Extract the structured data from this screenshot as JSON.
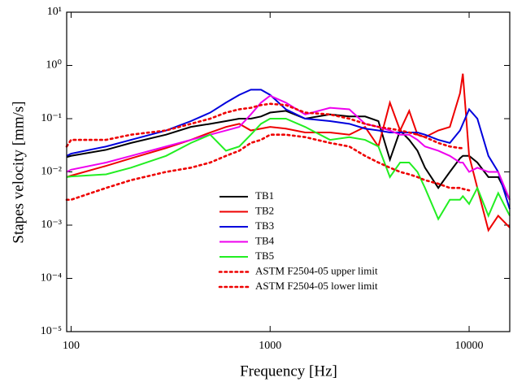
{
  "chart_data": {
    "type": "line",
    "xlabel": "Frequency [Hz]",
    "ylabel": "Stapes velocity [mm/s]",
    "xscale": "log",
    "yscale": "log",
    "xlim": [
      95,
      16000
    ],
    "ylim": [
      1e-05,
      10
    ],
    "xticks": [
      100,
      1000,
      10000
    ],
    "yticks": [
      {
        "value": 1e-05,
        "label": "10⁻⁵"
      },
      {
        "value": 0.0001,
        "label": "10⁻⁴"
      },
      {
        "value": 0.001,
        "label": "10⁻³"
      },
      {
        "value": 0.01,
        "label": "10⁻²"
      },
      {
        "value": 0.1,
        "label": "10⁻¹"
      },
      {
        "value": 1,
        "label": "10⁰"
      },
      {
        "value": 10,
        "label": "10¹"
      }
    ],
    "legend": "lower-center",
    "x": [
      95,
      100,
      150,
      200,
      300,
      400,
      500,
      600,
      700,
      800,
      900,
      1000,
      1200,
      1500,
      2000,
      2500,
      3000,
      3500,
      4000,
      4500,
      5000,
      5500,
      6000,
      7000,
      8000,
      9000,
      9300,
      10000,
      11000,
      12500,
      14000,
      16000
    ],
    "series": [
      {
        "name": "TB1",
        "color": "#000000",
        "dash": "solid",
        "values": [
          0.019,
          0.02,
          0.026,
          0.035,
          0.05,
          0.07,
          0.08,
          0.09,
          0.1,
          0.1,
          0.11,
          0.13,
          0.14,
          0.1,
          0.12,
          0.11,
          0.11,
          0.09,
          0.017,
          0.06,
          0.04,
          0.025,
          0.012,
          0.005,
          0.01,
          0.018,
          0.02,
          0.02,
          0.015,
          0.008,
          0.008,
          0.003
        ]
      },
      {
        "name": "TB2",
        "color": "#ee0000",
        "dash": "solid",
        "values": [
          0.008,
          0.0085,
          0.013,
          0.018,
          0.028,
          0.04,
          0.055,
          0.07,
          0.08,
          0.06,
          0.065,
          0.07,
          0.065,
          0.055,
          0.055,
          0.05,
          0.07,
          0.03,
          0.2,
          0.06,
          0.14,
          0.05,
          0.045,
          0.06,
          0.07,
          0.3,
          0.7,
          0.02,
          0.005,
          0.0008,
          0.0015,
          0.0009
        ]
      },
      {
        "name": "TB3",
        "color": "#0000dd",
        "dash": "solid",
        "values": [
          0.02,
          0.022,
          0.03,
          0.04,
          0.06,
          0.09,
          0.13,
          0.2,
          0.28,
          0.35,
          0.35,
          0.28,
          0.15,
          0.1,
          0.09,
          0.08,
          0.065,
          0.06,
          0.055,
          0.055,
          0.055,
          0.055,
          0.05,
          0.04,
          0.035,
          0.06,
          0.08,
          0.15,
          0.1,
          0.02,
          0.01,
          0.002
        ]
      },
      {
        "name": "TB4",
        "color": "#ee00ee",
        "dash": "solid",
        "values": [
          0.01,
          0.011,
          0.015,
          0.02,
          0.03,
          0.04,
          0.05,
          0.06,
          0.07,
          0.12,
          0.2,
          0.27,
          0.2,
          0.12,
          0.16,
          0.15,
          0.08,
          0.07,
          0.06,
          0.05,
          0.05,
          0.04,
          0.03,
          0.025,
          0.02,
          0.015,
          0.015,
          0.01,
          0.012,
          0.01,
          0.01,
          0.003
        ]
      },
      {
        "name": "TB5",
        "color": "#22ee22",
        "dash": "solid",
        "values": [
          0.008,
          0.0082,
          0.009,
          0.012,
          0.02,
          0.035,
          0.05,
          0.025,
          0.03,
          0.05,
          0.08,
          0.1,
          0.1,
          0.07,
          0.04,
          0.045,
          0.04,
          0.03,
          0.008,
          0.015,
          0.015,
          0.01,
          0.005,
          0.0013,
          0.003,
          0.003,
          0.0035,
          0.0025,
          0.005,
          0.0015,
          0.004,
          0.0015
        ]
      },
      {
        "name": "ASTM F2504-05 upper limit",
        "color": "#ee0000",
        "dash": "dotted",
        "values": [
          0.03,
          0.04,
          0.04,
          0.05,
          0.06,
          0.08,
          0.1,
          0.13,
          0.15,
          0.16,
          0.18,
          0.19,
          0.18,
          0.13,
          0.12,
          0.1,
          0.08,
          0.07,
          0.065,
          0.06,
          0.055,
          0.05,
          0.045,
          0.035,
          0.03,
          0.028,
          0.028,
          null,
          null,
          null,
          null,
          null
        ]
      },
      {
        "name": "ASTM F2504-05 lower limit",
        "color": "#ee0000",
        "dash": "dotted",
        "values": [
          0.003,
          0.003,
          0.005,
          0.007,
          0.01,
          0.012,
          0.015,
          0.02,
          0.025,
          0.035,
          0.04,
          0.05,
          0.05,
          0.045,
          0.035,
          0.03,
          0.02,
          0.015,
          0.012,
          0.01,
          0.009,
          0.008,
          0.007,
          0.006,
          0.005,
          0.005,
          0.0048,
          0.0045,
          null,
          null,
          null,
          null
        ]
      }
    ]
  }
}
